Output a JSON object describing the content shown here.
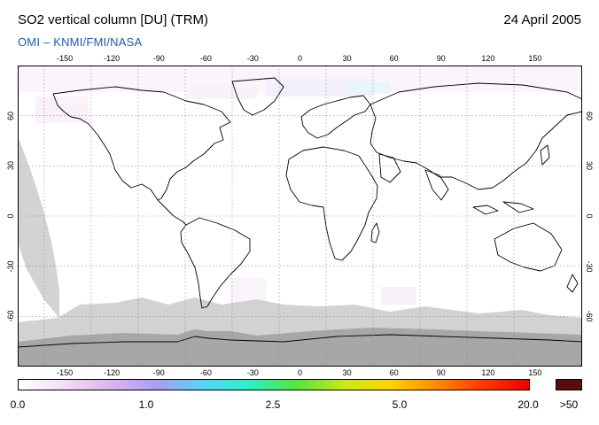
{
  "header": {
    "title": "SO2 vertical column [DU] (TRM)",
    "date": "24 April 2005",
    "subtitle": "OMI  –  KNMI/FMI/NASA"
  },
  "map": {
    "projection": "equirectangular",
    "lon_range": [
      -180,
      180
    ],
    "lat_range": [
      -90,
      90
    ],
    "lon_ticks": [
      "-150",
      "-120",
      "-90",
      "-60",
      "-30",
      "0",
      "30",
      "60",
      "90",
      "120",
      "150"
    ],
    "lat_ticks": [
      "60",
      "30",
      "0",
      "-30",
      "-60"
    ],
    "grid": "dotted",
    "colors": {
      "background": "#ffffff",
      "no_data": "#d2d2d2",
      "antarctica_no_data": "#a6a6a6",
      "coastline": "#000000",
      "grid": "#8a8a8a"
    }
  },
  "colorbar": {
    "labels": [
      "0.0",
      "1.0",
      "2.5",
      "5.0",
      "20.0"
    ],
    "overflow_label": ">50",
    "overflow_color": "#5a0c0c",
    "gradient_stops": [
      "#ffffff",
      "#f2ddf2",
      "#dcb4ef",
      "#a79ef2",
      "#55d6f7",
      "#2bf0c0",
      "#54e63c",
      "#c8e81e",
      "#ffd400",
      "#ff8a00",
      "#ff3a00",
      "#e80000"
    ]
  }
}
